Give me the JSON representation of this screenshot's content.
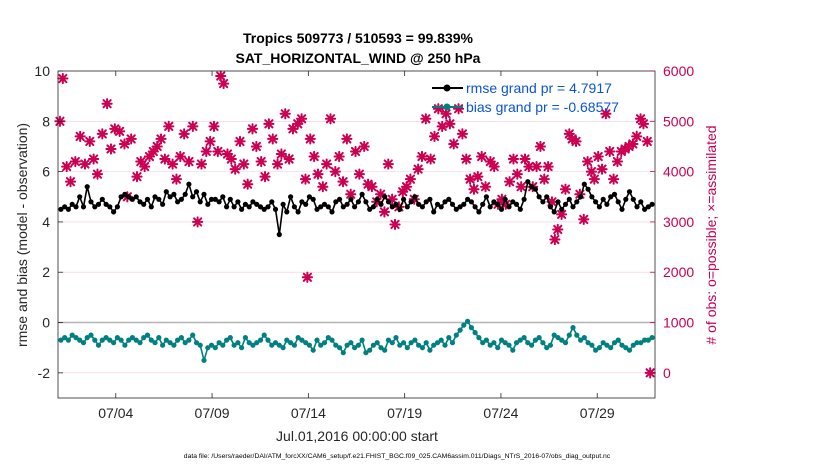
{
  "chart_data": {
    "type": "line",
    "title_line1": "Tropics 509773 / 510593 = 99.839%",
    "title_line2": "SAT_HORIZONTAL_WIND @ 250 hPa",
    "xlabel": "Jul.01,2016 00:00:00 start",
    "ylabel_left": "rmse and bias (model - observation)",
    "ylabel_right": "# of obs: o=possible; ×=assimilated",
    "xlim": [
      1,
      32
    ],
    "ylim_left": [
      -3,
      10
    ],
    "ylim_right": [
      -500,
      6000
    ],
    "x_ticks": [
      {
        "v": 4,
        "label": "07/04"
      },
      {
        "v": 9,
        "label": "07/09"
      },
      {
        "v": 14,
        "label": "07/14"
      },
      {
        "v": 19,
        "label": "07/19"
      },
      {
        "v": 24,
        "label": "07/24"
      },
      {
        "v": 29,
        "label": "07/29"
      }
    ],
    "y_ticks_left": [
      {
        "v": -2,
        "label": "-2"
      },
      {
        "v": 0,
        "label": "0"
      },
      {
        "v": 2,
        "label": "2"
      },
      {
        "v": 4,
        "label": "4"
      },
      {
        "v": 6,
        "label": "6"
      },
      {
        "v": 8,
        "label": "8"
      },
      {
        "v": 10,
        "label": "10"
      }
    ],
    "y_ticks_right": [
      {
        "v": 0,
        "label": "0"
      },
      {
        "v": 1000,
        "label": "1000"
      },
      {
        "v": 2000,
        "label": "2000"
      },
      {
        "v": 3000,
        "label": "3000"
      },
      {
        "v": 4000,
        "label": "4000"
      },
      {
        "v": 5000,
        "label": "5000"
      },
      {
        "v": 6000,
        "label": "6000"
      }
    ],
    "grid": true,
    "legend_position": "top-right",
    "series": [
      {
        "name": "rmse grand pr = 4.7917",
        "color": "#000000",
        "values": [
          4.5,
          4.6,
          4.5,
          4.7,
          4.6,
          5.0,
          4.6,
          5.4,
          4.8,
          4.6,
          4.7,
          4.9,
          4.7,
          4.6,
          4.4,
          4.6,
          5.0,
          5.1,
          5.0,
          4.9,
          5.0,
          4.8,
          4.7,
          4.9,
          4.6,
          5.0,
          4.9,
          4.7,
          5.2,
          5.0,
          5.1,
          4.8,
          4.9,
          5.1,
          5.5,
          5.0,
          5.2,
          4.8,
          5.1,
          4.7,
          4.9,
          4.9,
          4.8,
          5.0,
          4.6,
          4.9,
          4.6,
          4.8,
          4.5,
          4.7,
          4.6,
          4.8,
          4.7,
          4.6,
          4.5,
          4.6,
          4.8,
          4.5,
          3.5,
          4.7,
          4.4,
          5.0,
          4.6,
          4.4,
          4.8,
          4.7,
          5.0,
          4.9,
          4.5,
          4.6,
          4.7,
          4.6,
          4.4,
          4.8,
          4.9,
          4.6,
          4.7,
          4.9,
          4.6,
          4.8,
          5.1,
          4.8,
          4.5,
          4.6,
          4.9,
          4.7,
          5.0,
          4.8,
          4.6,
          4.7,
          4.5,
          4.9,
          4.6,
          4.8,
          5.0,
          4.7,
          4.6,
          4.8,
          4.9,
          4.4,
          4.7,
          4.6,
          4.8,
          4.9,
          4.7,
          4.5,
          4.6,
          4.7,
          4.9,
          4.8,
          4.6,
          4.4,
          4.7,
          5.0,
          4.6,
          4.8,
          4.7,
          4.5,
          4.9,
          4.6,
          4.8,
          4.7,
          4.5,
          4.9,
          5.6,
          5.4,
          5.3,
          5.0,
          4.8,
          5.0,
          4.6,
          4.4,
          4.8,
          4.5,
          4.7,
          4.9,
          4.6,
          4.8,
          5.0,
          5.5,
          5.3,
          5.0,
          4.8,
          4.6,
          4.9,
          4.7,
          5.0,
          5.1,
          4.8,
          4.5,
          4.9,
          5.2,
          4.9,
          4.6,
          4.8,
          4.5,
          4.6,
          4.7
        ]
      },
      {
        "name": "bias grand pr = -0.68577",
        "color": "#008080",
        "values": [
          -0.7,
          -0.6,
          -0.7,
          -0.5,
          -0.6,
          -0.7,
          -0.8,
          -0.6,
          -0.5,
          -0.7,
          -0.9,
          -0.7,
          -0.6,
          -0.7,
          -0.8,
          -0.6,
          -0.7,
          -0.9,
          -0.7,
          -0.6,
          -0.7,
          -0.8,
          -0.6,
          -0.5,
          -0.7,
          -0.8,
          -0.6,
          -0.9,
          -0.7,
          -0.8,
          -0.9,
          -0.7,
          -0.6,
          -0.8,
          -0.7,
          -0.5,
          -0.8,
          -0.9,
          -1.5,
          -1.0,
          -0.9,
          -1.0,
          -0.8,
          -0.9,
          -0.7,
          -0.6,
          -0.9,
          -0.8,
          -1.0,
          -0.6,
          -0.8,
          -0.9,
          -0.8,
          -0.7,
          -0.5,
          -0.7,
          -0.9,
          -0.8,
          -0.9,
          -1.0,
          -0.7,
          -0.8,
          -0.9,
          -0.6,
          -0.7,
          -0.8,
          -0.9,
          -1.1,
          -0.7,
          -0.9,
          -0.8,
          -0.6,
          -0.7,
          -0.9,
          -1.0,
          -1.2,
          -0.9,
          -0.8,
          -1.0,
          -0.9,
          -0.7,
          -1.2,
          -1.1,
          -0.9,
          -0.8,
          -1.0,
          -1.1,
          -0.7,
          -0.8,
          -0.6,
          -0.9,
          -0.8,
          -1.0,
          -0.8,
          -0.7,
          -0.9,
          -1.0,
          -0.8,
          -1.1,
          -0.9,
          -0.8,
          -0.7,
          -0.9,
          -0.6,
          -0.8,
          -0.5,
          -0.3,
          -0.1,
          0.05,
          -0.2,
          -0.4,
          -0.6,
          -0.8,
          -0.7,
          -0.9,
          -0.8,
          -1.0,
          -0.7,
          -0.8,
          -0.9,
          -1.1,
          -0.8,
          -0.7,
          -0.6,
          -0.8,
          -0.9,
          -0.7,
          -0.6,
          -0.8,
          -1.0,
          -0.9,
          -0.5,
          -0.6,
          -0.7,
          -0.8,
          -0.5,
          -0.2,
          -0.5,
          -0.7,
          -0.6,
          -0.8,
          -0.9,
          -1.1,
          -1.0,
          -0.8,
          -0.9,
          -1.0,
          -0.8,
          -0.7,
          -0.9,
          -1.0,
          -1.1,
          -0.9,
          -0.8,
          -0.8,
          -0.7,
          -0.7,
          -0.6
        ]
      }
    ],
    "obs_assimilated": [
      {
        "x": 1.1,
        "y": 5000
      },
      {
        "x": 1.25,
        "y": 5850
      },
      {
        "x": 1.45,
        "y": 4100
      },
      {
        "x": 1.65,
        "y": 3800
      },
      {
        "x": 1.9,
        "y": 4200
      },
      {
        "x": 2.15,
        "y": 4700
      },
      {
        "x": 2.4,
        "y": 4150
      },
      {
        "x": 2.65,
        "y": 4600
      },
      {
        "x": 2.85,
        "y": 4250
      },
      {
        "x": 3.05,
        "y": 3950
      },
      {
        "x": 3.3,
        "y": 4750
      },
      {
        "x": 3.55,
        "y": 5350
      },
      {
        "x": 3.75,
        "y": 4450
      },
      {
        "x": 3.95,
        "y": 4850
      },
      {
        "x": 4.2,
        "y": 4800
      },
      {
        "x": 4.45,
        "y": 4550
      },
      {
        "x": 4.6,
        "y": 3500
      },
      {
        "x": 4.8,
        "y": 4650
      },
      {
        "x": 5.1,
        "y": 3900
      },
      {
        "x": 5.3,
        "y": 4200
      },
      {
        "x": 5.5,
        "y": 4100
      },
      {
        "x": 5.75,
        "y": 4300
      },
      {
        "x": 5.95,
        "y": 4400
      },
      {
        "x": 6.15,
        "y": 4500
      },
      {
        "x": 6.35,
        "y": 4650
      },
      {
        "x": 6.55,
        "y": 4250
      },
      {
        "x": 6.75,
        "y": 4900
      },
      {
        "x": 6.95,
        "y": 4150
      },
      {
        "x": 7.15,
        "y": 3850
      },
      {
        "x": 7.35,
        "y": 4300
      },
      {
        "x": 7.55,
        "y": 4750
      },
      {
        "x": 7.8,
        "y": 4200
      },
      {
        "x": 8.0,
        "y": 4900
      },
      {
        "x": 8.25,
        "y": 3000
      },
      {
        "x": 8.45,
        "y": 4150
      },
      {
        "x": 8.7,
        "y": 4400
      },
      {
        "x": 8.9,
        "y": 4600
      },
      {
        "x": 9.1,
        "y": 4900
      },
      {
        "x": 9.3,
        "y": 4400
      },
      {
        "x": 9.45,
        "y": 5900
      },
      {
        "x": 9.6,
        "y": 5750
      },
      {
        "x": 9.8,
        "y": 4350
      },
      {
        "x": 10.0,
        "y": 4250
      },
      {
        "x": 10.2,
        "y": 4050
      },
      {
        "x": 10.45,
        "y": 4600
      },
      {
        "x": 10.65,
        "y": 4150
      },
      {
        "x": 10.85,
        "y": 3750
      },
      {
        "x": 11.1,
        "y": 4850
      },
      {
        "x": 11.3,
        "y": 4500
      },
      {
        "x": 11.55,
        "y": 4200
      },
      {
        "x": 11.75,
        "y": 3900
      },
      {
        "x": 11.95,
        "y": 4950
      },
      {
        "x": 12.15,
        "y": 4650
      },
      {
        "x": 12.4,
        "y": 4150
      },
      {
        "x": 12.6,
        "y": 4350
      },
      {
        "x": 12.8,
        "y": 5150
      },
      {
        "x": 13.0,
        "y": 4250
      },
      {
        "x": 13.2,
        "y": 4850
      },
      {
        "x": 13.45,
        "y": 4950
      },
      {
        "x": 13.65,
        "y": 5050
      },
      {
        "x": 13.85,
        "y": 3850
      },
      {
        "x": 13.95,
        "y": 1900
      },
      {
        "x": 14.1,
        "y": 4650
      },
      {
        "x": 14.3,
        "y": 4300
      },
      {
        "x": 14.5,
        "y": 3950
      },
      {
        "x": 14.75,
        "y": 3700
      },
      {
        "x": 14.95,
        "y": 4150
      },
      {
        "x": 15.15,
        "y": 5050
      },
      {
        "x": 15.4,
        "y": 4000
      },
      {
        "x": 15.6,
        "y": 4300
      },
      {
        "x": 15.8,
        "y": 3800
      },
      {
        "x": 16.0,
        "y": 4650
      },
      {
        "x": 16.2,
        "y": 3550
      },
      {
        "x": 16.45,
        "y": 4400
      },
      {
        "x": 16.65,
        "y": 3950
      },
      {
        "x": 16.9,
        "y": 4500
      },
      {
        "x": 17.1,
        "y": 3750
      },
      {
        "x": 17.3,
        "y": 3700
      },
      {
        "x": 17.55,
        "y": 3400
      },
      {
        "x": 17.75,
        "y": 3550
      },
      {
        "x": 17.95,
        "y": 3200
      },
      {
        "x": 18.15,
        "y": 4150
      },
      {
        "x": 18.35,
        "y": 3450
      },
      {
        "x": 18.5,
        "y": 2950
      },
      {
        "x": 18.7,
        "y": 3300
      },
      {
        "x": 18.9,
        "y": 3600
      },
      {
        "x": 19.1,
        "y": 3700
      },
      {
        "x": 19.3,
        "y": 3850
      },
      {
        "x": 19.5,
        "y": 3450
      },
      {
        "x": 19.7,
        "y": 4050
      },
      {
        "x": 19.9,
        "y": 4300
      },
      {
        "x": 20.1,
        "y": 5050
      },
      {
        "x": 20.35,
        "y": 4250
      },
      {
        "x": 20.55,
        "y": 4700
      },
      {
        "x": 20.75,
        "y": 5250
      },
      {
        "x": 20.95,
        "y": 4900
      },
      {
        "x": 21.15,
        "y": 5150
      },
      {
        "x": 21.35,
        "y": 4950
      },
      {
        "x": 21.55,
        "y": 4550
      },
      {
        "x": 21.8,
        "y": 5250
      },
      {
        "x": 22.0,
        "y": 4750
      },
      {
        "x": 22.2,
        "y": 4250
      },
      {
        "x": 22.4,
        "y": 3850
      },
      {
        "x": 22.6,
        "y": 3650
      },
      {
        "x": 22.8,
        "y": 3900
      },
      {
        "x": 23.0,
        "y": 4300
      },
      {
        "x": 23.2,
        "y": 3700
      },
      {
        "x": 23.45,
        "y": 4200
      },
      {
        "x": 23.65,
        "y": 4100
      },
      {
        "x": 23.85,
        "y": 3350
      },
      {
        "x": 24.05,
        "y": 3450
      },
      {
        "x": 24.25,
        "y": 3350
      },
      {
        "x": 24.45,
        "y": 3800
      },
      {
        "x": 24.65,
        "y": 4250
      },
      {
        "x": 24.85,
        "y": 3950
      },
      {
        "x": 25.05,
        "y": 3700
      },
      {
        "x": 25.25,
        "y": 4250
      },
      {
        "x": 25.45,
        "y": 4100
      },
      {
        "x": 25.65,
        "y": 3700
      },
      {
        "x": 25.85,
        "y": 4100
      },
      {
        "x": 26.05,
        "y": 4500
      },
      {
        "x": 26.25,
        "y": 3850
      },
      {
        "x": 26.45,
        "y": 4100
      },
      {
        "x": 26.65,
        "y": 3400
      },
      {
        "x": 26.8,
        "y": 2650
      },
      {
        "x": 26.95,
        "y": 2850
      },
      {
        "x": 27.15,
        "y": 3150
      },
      {
        "x": 27.35,
        "y": 3650
      },
      {
        "x": 27.55,
        "y": 4750
      },
      {
        "x": 27.7,
        "y": 4650
      },
      {
        "x": 27.9,
        "y": 4600
      },
      {
        "x": 28.1,
        "y": 3550
      },
      {
        "x": 28.3,
        "y": 3050
      },
      {
        "x": 28.5,
        "y": 4200
      },
      {
        "x": 28.7,
        "y": 4000
      },
      {
        "x": 28.85,
        "y": 3850
      },
      {
        "x": 29.05,
        "y": 4300
      },
      {
        "x": 29.25,
        "y": 4050
      },
      {
        "x": 29.45,
        "y": 5150
      },
      {
        "x": 29.65,
        "y": 4400
      },
      {
        "x": 29.85,
        "y": 3850
      },
      {
        "x": 30.05,
        "y": 4200
      },
      {
        "x": 30.25,
        "y": 4400
      },
      {
        "x": 30.45,
        "y": 4450
      },
      {
        "x": 30.65,
        "y": 4500
      },
      {
        "x": 30.85,
        "y": 4550
      },
      {
        "x": 31.05,
        "y": 4700
      },
      {
        "x": 31.25,
        "y": 5050
      },
      {
        "x": 31.4,
        "y": 4950
      },
      {
        "x": 31.6,
        "y": 4600
      },
      {
        "x": 31.75,
        "y": 0
      }
    ],
    "obs_color": "#cc0052",
    "footer_note": "data file: /Users/raeder/DAI/ATM_forcXX/CAM6_setup/f.e21.FHIST_BGC.f09_025.CAM6assim.011/Diags_NTrS_2016-07/obs_diag_output.nc"
  }
}
